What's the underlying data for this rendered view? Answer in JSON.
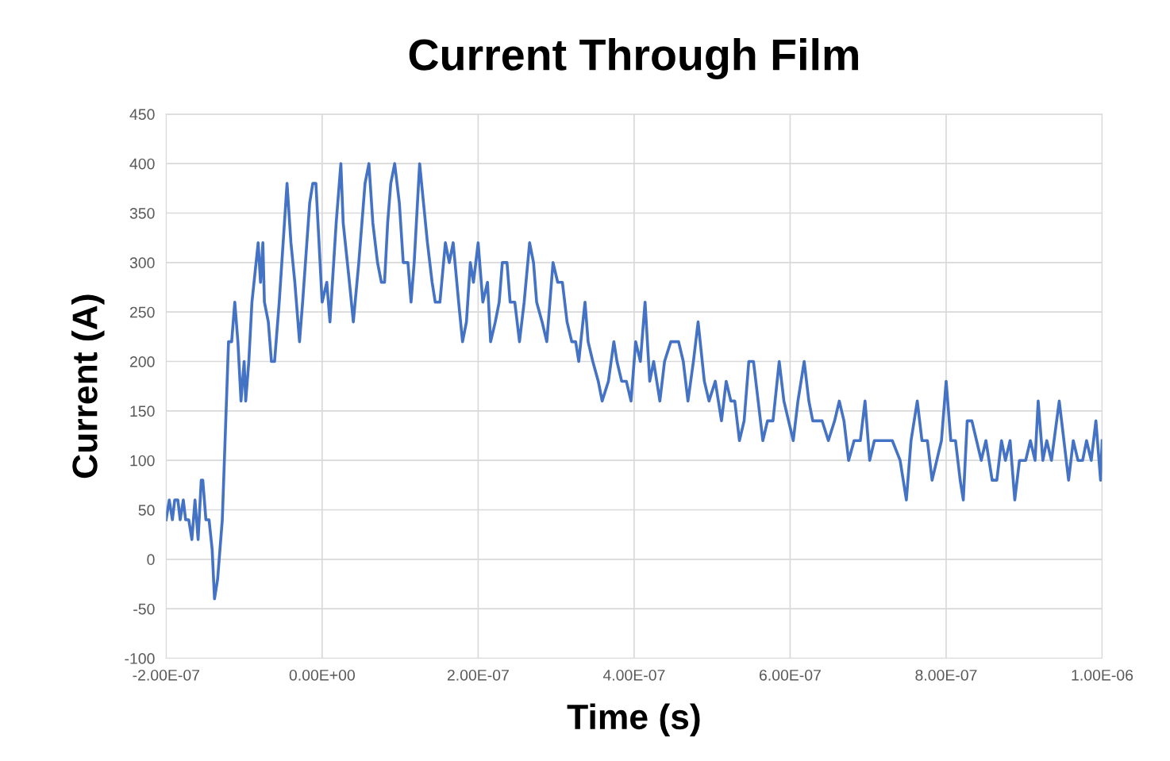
{
  "chart_data": {
    "type": "line",
    "title": "Current Through Film",
    "xlabel": "Time (s)",
    "ylabel": "Current (A)",
    "xlim": [
      -2e-07,
      1e-06
    ],
    "ylim": [
      -100,
      450
    ],
    "xticks": [
      {
        "value": -2e-07,
        "label": "-2.00E-07"
      },
      {
        "value": 0,
        "label": "0.00E+00"
      },
      {
        "value": 2e-07,
        "label": "2.00E-07"
      },
      {
        "value": 4e-07,
        "label": "4.00E-07"
      },
      {
        "value": 6e-07,
        "label": "6.00E-07"
      },
      {
        "value": 8e-07,
        "label": "8.00E-07"
      },
      {
        "value": 1e-06,
        "label": "1.00E-06"
      }
    ],
    "yticks": [
      -100,
      -50,
      0,
      50,
      100,
      150,
      200,
      250,
      300,
      350,
      400,
      450
    ],
    "grid": true,
    "marker": "none",
    "line_style": "solid",
    "series": [
      {
        "color": "#4472c4",
        "x": [
          -2e-07,
          -1.96e-07,
          -1.92e-07,
          -1.89e-07,
          -1.85e-07,
          -1.82e-07,
          -1.78e-07,
          -1.75e-07,
          -1.71e-07,
          -1.67e-07,
          -1.63e-07,
          -1.59e-07,
          -1.55e-07,
          -1.53e-07,
          -1.49e-07,
          -1.45e-07,
          -1.41e-07,
          -1.38e-07,
          -1.34e-07,
          -1.28e-07,
          -1.2e-07,
          -1.16e-07,
          -1.12e-07,
          -1.08e-07,
          -1.04e-07,
          -1e-07,
          -9.8e-08,
          -9.4e-08,
          -9e-08,
          -8.2e-08,
          -7.9e-08,
          -7.6e-08,
          -7.4e-08,
          -6.9e-08,
          -6.5e-08,
          -6.1e-08,
          -5.5e-08,
          -4.5e-08,
          -4e-08,
          -3.5e-08,
          -2.9e-08,
          -2.5e-08,
          -1.6e-08,
          -1.2e-08,
          -8e-09,
          -4e-09,
          0.0,
          6e-09,
          1e-08,
          1.8e-08,
          2.4e-08,
          2.7e-08,
          3.5e-08,
          4e-08,
          4.7e-08,
          5.5e-08,
          6e-08,
          6.5e-08,
          7.1e-08,
          7.6e-08,
          8e-08,
          8.4e-08,
          8.8e-08,
          9.3e-08,
          9.9e-08,
          1.04e-07,
          1.1e-07,
          1.14e-07,
          1.18e-07,
          1.25e-07,
          1.3e-07,
          1.35e-07,
          1.41e-07,
          1.45e-07,
          1.51e-07,
          1.58e-07,
          1.63e-07,
          1.68e-07,
          1.75e-07,
          1.8e-07,
          1.85e-07,
          1.9e-07,
          1.94e-07,
          2e-07,
          2.06e-07,
          2.12e-07,
          2.16e-07,
          2.22e-07,
          2.27e-07,
          2.31e-07,
          2.37e-07,
          2.41e-07,
          2.47e-07,
          2.53e-07,
          2.59e-07,
          2.66e-07,
          2.71e-07,
          2.75e-07,
          2.82e-07,
          2.88e-07,
          2.96e-07,
          3.02e-07,
          3.08e-07,
          3.14e-07,
          3.2e-07,
          3.25e-07,
          3.29e-07,
          3.37e-07,
          3.41e-07,
          3.47e-07,
          3.54e-07,
          3.59e-07,
          3.67e-07,
          3.74e-07,
          3.78e-07,
          3.84e-07,
          3.9e-07,
          3.96e-07,
          4.02e-07,
          4.08e-07,
          4.14e-07,
          4.2e-07,
          4.25e-07,
          4.33e-07,
          4.39e-07,
          4.47e-07,
          4.57e-07,
          4.63e-07,
          4.69e-07,
          4.76e-07,
          4.82e-07,
          4.9e-07,
          4.96e-07,
          5.04e-07,
          5.12e-07,
          5.18e-07,
          5.24e-07,
          5.29e-07,
          5.35e-07,
          5.41e-07,
          5.47e-07,
          5.53e-07,
          5.59e-07,
          5.65e-07,
          5.71e-07,
          5.78e-07,
          5.86e-07,
          5.92e-07,
          5.98e-07,
          6.04e-07,
          6.1e-07,
          6.18e-07,
          6.24e-07,
          6.29e-07,
          6.35e-07,
          6.41e-07,
          6.49e-07,
          6.57e-07,
          6.63e-07,
          6.69e-07,
          6.75e-07,
          6.82e-07,
          6.9e-07,
          6.96e-07,
          7.02e-07,
          7.08e-07,
          7.18e-07,
          7.31e-07,
          7.41e-07,
          7.49e-07,
          7.55e-07,
          7.63e-07,
          7.69e-07,
          7.76e-07,
          7.82e-07,
          7.88e-07,
          7.94e-07,
          8e-07,
          8.06e-07,
          8.12e-07,
          8.18e-07,
          8.22e-07,
          8.27e-07,
          8.33e-07,
          8.39e-07,
          8.45e-07,
          8.51e-07,
          8.59e-07,
          8.65e-07,
          8.71e-07,
          8.76e-07,
          8.82e-07,
          8.88e-07,
          8.94e-07,
          9.02e-07,
          9.08e-07,
          9.14e-07,
          9.18e-07,
          9.24e-07,
          9.29e-07,
          9.35e-07,
          9.45e-07,
          9.51e-07,
          9.57e-07,
          9.63e-07,
          9.69e-07,
          9.75e-07,
          9.8e-07,
          9.86e-07,
          9.92e-07,
          9.98e-07,
          1e-06
        ],
        "values": [
          40,
          60,
          40,
          60,
          60,
          40,
          60,
          40,
          40,
          20,
          60,
          20,
          80,
          80,
          40,
          40,
          10,
          -40,
          -20,
          40,
          220,
          220,
          260,
          220,
          160,
          200,
          160,
          200,
          260,
          320,
          280,
          320,
          260,
          240,
          200,
          200,
          260,
          380,
          320,
          280,
          220,
          260,
          360,
          380,
          380,
          320,
          260,
          280,
          240,
          340,
          400,
          340,
          280,
          240,
          300,
          380,
          400,
          340,
          300,
          280,
          280,
          340,
          380,
          400,
          360,
          300,
          300,
          260,
          300,
          400,
          360,
          320,
          280,
          260,
          260,
          320,
          300,
          320,
          260,
          220,
          240,
          300,
          280,
          320,
          260,
          280,
          220,
          240,
          260,
          300,
          300,
          260,
          260,
          220,
          260,
          320,
          300,
          260,
          240,
          220,
          300,
          280,
          280,
          240,
          220,
          220,
          200,
          260,
          220,
          200,
          180,
          160,
          180,
          220,
          200,
          180,
          180,
          160,
          220,
          200,
          260,
          180,
          200,
          160,
          200,
          220,
          220,
          200,
          160,
          200,
          240,
          180,
          160,
          180,
          140,
          180,
          160,
          160,
          120,
          140,
          200,
          200,
          160,
          120,
          140,
          140,
          200,
          160,
          140,
          120,
          160,
          200,
          160,
          140,
          140,
          140,
          120,
          140,
          160,
          140,
          100,
          120,
          120,
          160,
          100,
          120,
          120,
          120,
          100,
          60,
          120,
          160,
          120,
          120,
          80,
          100,
          120,
          180,
          120,
          120,
          80,
          60,
          140,
          140,
          120,
          100,
          120,
          80,
          80,
          120,
          100,
          120,
          60,
          100,
          100,
          120,
          100,
          160,
          100,
          120,
          100,
          160,
          120,
          80,
          120,
          100,
          100,
          120,
          100,
          140,
          80,
          120
        ]
      }
    ]
  }
}
